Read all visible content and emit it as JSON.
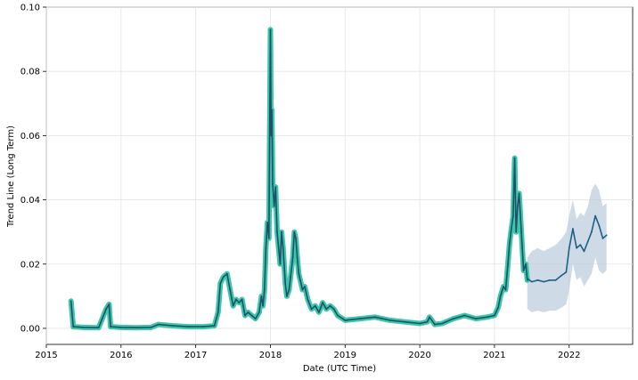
{
  "chart_data": {
    "type": "line",
    "title": "",
    "xlabel": "Date (UTC Time)",
    "ylabel": "Trend Line (Long Term)",
    "x_unit": "year",
    "xlim": [
      2015.0,
      2022.85
    ],
    "ylim": [
      -0.005,
      0.1
    ],
    "grid": true,
    "legend": "none",
    "x_ticks": [
      {
        "value": 2015,
        "label": "2015"
      },
      {
        "value": 2016,
        "label": "2016"
      },
      {
        "value": 2017,
        "label": "2017"
      },
      {
        "value": 2018,
        "label": "2018"
      },
      {
        "value": 2019,
        "label": "2019"
      },
      {
        "value": 2020,
        "label": "2020"
      },
      {
        "value": 2021,
        "label": "2021"
      },
      {
        "value": 2022,
        "label": "2022"
      }
    ],
    "y_ticks": [
      {
        "value": 0.0,
        "label": "0.00"
      },
      {
        "value": 0.02,
        "label": "0.02"
      },
      {
        "value": 0.04,
        "label": "0.04"
      },
      {
        "value": 0.06,
        "label": "0.06"
      },
      {
        "value": 0.08,
        "label": "0.08"
      },
      {
        "value": 0.1,
        "label": "0.10"
      }
    ],
    "colors": {
      "history_line": "#1f4f6b",
      "history_halo": "#3cc7a9",
      "forecast_line": "#1f5f85",
      "forecast_band": "#b3c8d8"
    },
    "series": [
      {
        "role": "history",
        "x": [
          2015.33,
          2015.36,
          2015.5,
          2015.7,
          2015.8,
          2015.84,
          2015.86,
          2016.0,
          2016.2,
          2016.4,
          2016.5,
          2016.7,
          2016.9,
          2017.1,
          2017.25,
          2017.3,
          2017.33,
          2017.37,
          2017.42,
          2017.46,
          2017.5,
          2017.54,
          2017.58,
          2017.62,
          2017.66,
          2017.7,
          2017.75,
          2017.8,
          2017.85,
          2017.88,
          2017.9,
          2017.92,
          2017.94,
          2017.96,
          2017.98,
          2018.0,
          2018.01,
          2018.02,
          2018.03,
          2018.05,
          2018.07,
          2018.09,
          2018.11,
          2018.13,
          2018.15,
          2018.17,
          2018.2,
          2018.22,
          2018.25,
          2018.27,
          2018.3,
          2018.32,
          2018.34,
          2018.36,
          2018.38,
          2018.4,
          2018.43,
          2018.46,
          2018.5,
          2018.55,
          2018.6,
          2018.65,
          2018.7,
          2018.75,
          2018.8,
          2018.85,
          2018.9,
          2019.0,
          2019.2,
          2019.4,
          2019.6,
          2019.8,
          2020.0,
          2020.1,
          2020.13,
          2020.2,
          2020.3,
          2020.45,
          2020.6,
          2020.75,
          2020.9,
          2021.0,
          2021.05,
          2021.08,
          2021.12,
          2021.15,
          2021.18,
          2021.2,
          2021.22,
          2021.25,
          2021.27,
          2021.29,
          2021.31,
          2021.33,
          2021.36,
          2021.39,
          2021.42,
          2021.44
        ],
        "y": [
          0.0085,
          0.0005,
          0.0003,
          0.0002,
          0.006,
          0.0075,
          0.0005,
          0.0003,
          0.0002,
          0.0003,
          0.0012,
          0.0008,
          0.0005,
          0.0005,
          0.0008,
          0.005,
          0.014,
          0.016,
          0.017,
          0.012,
          0.007,
          0.009,
          0.008,
          0.009,
          0.004,
          0.005,
          0.004,
          0.003,
          0.005,
          0.01,
          0.007,
          0.012,
          0.025,
          0.033,
          0.028,
          0.093,
          0.06,
          0.068,
          0.045,
          0.038,
          0.044,
          0.03,
          0.025,
          0.02,
          0.03,
          0.025,
          0.014,
          0.01,
          0.012,
          0.016,
          0.022,
          0.03,
          0.028,
          0.022,
          0.017,
          0.015,
          0.012,
          0.013,
          0.009,
          0.006,
          0.007,
          0.005,
          0.008,
          0.006,
          0.007,
          0.006,
          0.004,
          0.0025,
          0.003,
          0.0035,
          0.0025,
          0.002,
          0.0015,
          0.002,
          0.0035,
          0.0012,
          0.0015,
          0.003,
          0.004,
          0.003,
          0.0035,
          0.004,
          0.0065,
          0.01,
          0.013,
          0.012,
          0.02,
          0.026,
          0.03,
          0.035,
          0.053,
          0.03,
          0.038,
          0.042,
          0.03,
          0.018,
          0.02,
          0.015
        ]
      },
      {
        "role": "forecast",
        "x": [
          2021.44,
          2021.5,
          2021.58,
          2021.66,
          2021.74,
          2021.82,
          2021.9,
          2021.96,
          2022.0,
          2022.05,
          2022.1,
          2022.15,
          2022.2,
          2022.25,
          2022.3,
          2022.35,
          2022.4,
          2022.45,
          2022.5
        ],
        "y": [
          0.0155,
          0.0145,
          0.015,
          0.0145,
          0.015,
          0.015,
          0.0165,
          0.0175,
          0.025,
          0.031,
          0.025,
          0.026,
          0.024,
          0.027,
          0.03,
          0.035,
          0.032,
          0.028,
          0.029
        ],
        "lower": [
          0.006,
          0.005,
          0.0055,
          0.005,
          0.0055,
          0.0055,
          0.0065,
          0.0075,
          0.012,
          0.02,
          0.015,
          0.016,
          0.013,
          0.015,
          0.017,
          0.022,
          0.018,
          0.017,
          0.018
        ],
        "upper": [
          0.022,
          0.024,
          0.025,
          0.024,
          0.025,
          0.026,
          0.028,
          0.03,
          0.035,
          0.04,
          0.034,
          0.036,
          0.035,
          0.038,
          0.043,
          0.045,
          0.043,
          0.038,
          0.039
        ]
      }
    ]
  }
}
